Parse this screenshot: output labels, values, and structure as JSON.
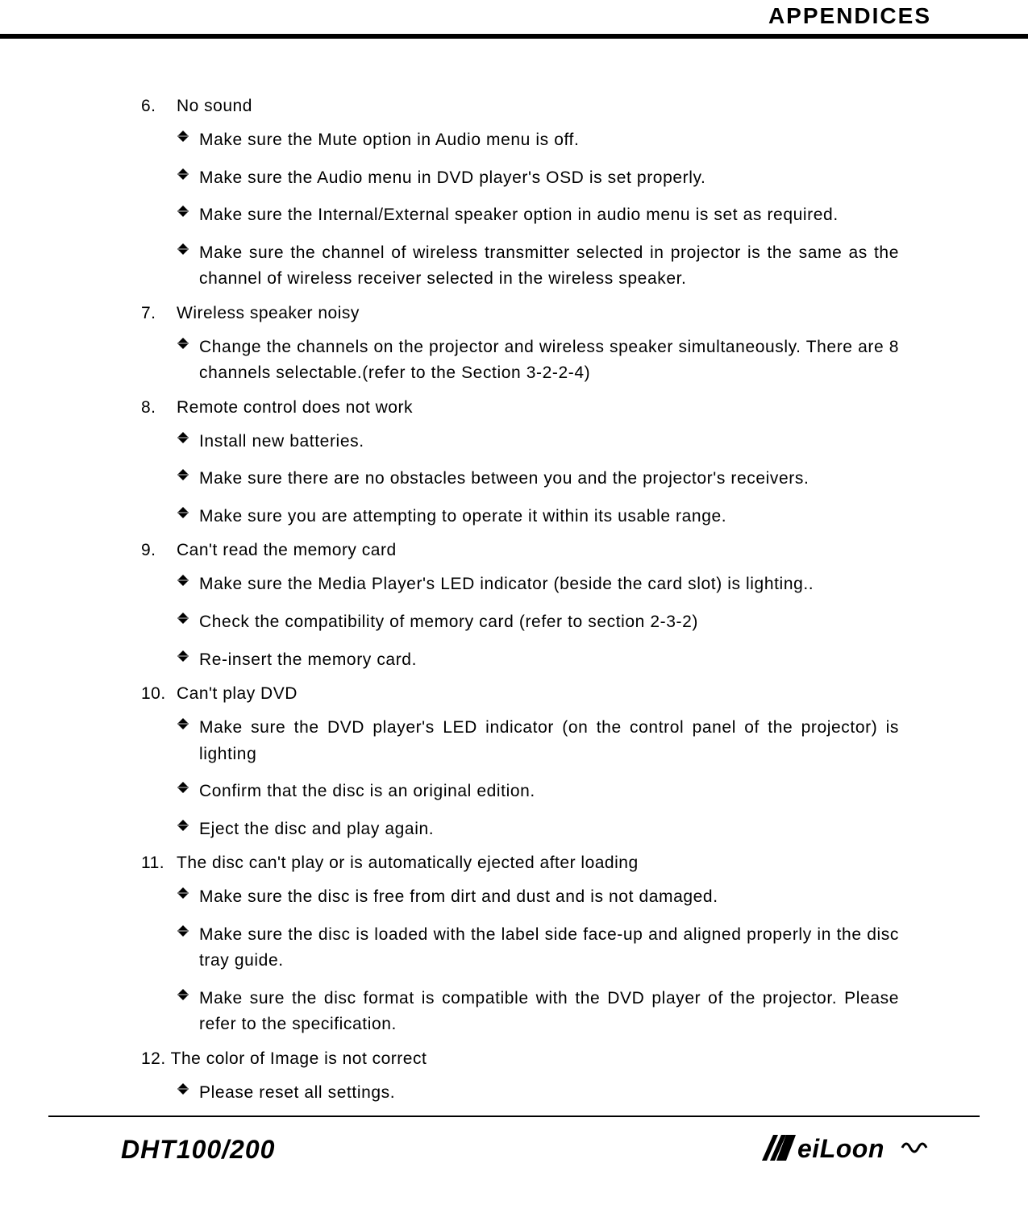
{
  "colors": {
    "text": "#000000",
    "background": "#ffffff",
    "rule": "#000000"
  },
  "typography": {
    "body_fontsize": 21,
    "header_fontsize": 28,
    "footer_model_fontsize": 32,
    "line_height": 1.55
  },
  "header": {
    "title": "APPENDICES"
  },
  "footer": {
    "model": "DHT100/200",
    "brand": "MeiLoon"
  },
  "sections": [
    {
      "num": "6.",
      "title": "No sound",
      "bullets": [
        {
          "text": "Make sure the Mute option in Audio menu is off.",
          "justify": false
        },
        {
          "text": "Make sure the Audio menu in DVD player's OSD is set properly.",
          "justify": false
        },
        {
          "text": "Make sure the Internal/External speaker option in audio menu is set as required.",
          "justify": false
        },
        {
          "text": "Make sure the channel of wireless transmitter selected in projector is the same as the channel of wireless receiver selected in the wireless speaker.",
          "justify": true
        }
      ]
    },
    {
      "num": "7.",
      "title": "Wireless speaker noisy",
      "bullets": [
        {
          "text": "Change the channels on the projector and wireless speaker simultaneously. There are 8 channels selectable.(refer to the Section 3-2-2-4)",
          "justify": true
        }
      ]
    },
    {
      "num": "8.",
      "title": "Remote control does not work",
      "bullets": [
        {
          "text": "Install new batteries.",
          "justify": false
        },
        {
          "text": "Make sure there are no obstacles between you and the projector's receivers.",
          "justify": false
        },
        {
          "text": "Make sure you are attempting to operate it within its usable range.",
          "justify": false
        }
      ]
    },
    {
      "num": "9.",
      "title": "Can't read the memory card",
      "bullets": [
        {
          "text": "Make sure the Media Player's LED indicator (beside the card slot) is lighting..",
          "justify": false
        },
        {
          "text": "Check the compatibility of memory card (refer to section 2-3-2)",
          "justify": false
        },
        {
          "text": "Re-insert the memory card.",
          "justify": false
        }
      ]
    },
    {
      "num": "10.",
      "title": "Can't play DVD",
      "bullets": [
        {
          "text": "Make sure the DVD player's LED indicator (on the control panel of the projector) is lighting",
          "justify": true
        },
        {
          "text": "Confirm that the disc is an original edition.",
          "justify": false
        },
        {
          "text": "Eject the disc and play again.",
          "justify": false
        }
      ]
    },
    {
      "num": "11.",
      "title": "The disc can't play or is automatically ejected after loading",
      "bullets": [
        {
          "text": "Make sure the disc is free from dirt and dust and is not damaged.",
          "justify": false
        },
        {
          "text": "Make sure the disc is loaded with the label side face-up and aligned properly in the disc tray guide.",
          "justify": true
        },
        {
          "text": "Make sure the disc format is compatible with the DVD player of the projector. Please refer to the specification.",
          "justify": true
        }
      ]
    },
    {
      "num": "12.",
      "title": "The color of Image is not correct",
      "inline": true,
      "bullets": [
        {
          "text": "Please reset all settings.",
          "justify": false
        }
      ]
    }
  ]
}
